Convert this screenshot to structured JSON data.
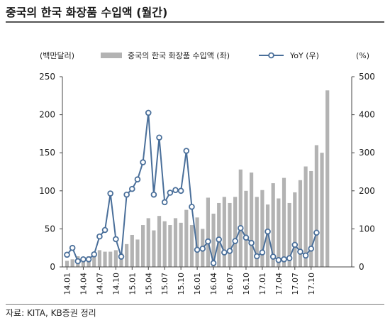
{
  "title": "중국의 한국 화장품 수입액 (월간)",
  "source": "자료: KITA, KB증권 정리",
  "chart_data": {
    "type": "bar+line",
    "y_left_unit": "(백만달러)",
    "y_right_unit": "(%)",
    "y_left_lim": [
      0,
      250
    ],
    "y_right_lim": [
      0,
      500
    ],
    "y_left_ticks": [
      "0",
      "50",
      "100",
      "150",
      "200",
      "250"
    ],
    "y_right_ticks": [
      "0",
      "100",
      "200",
      "300",
      "400",
      "500"
    ],
    "x_tick_labels": [
      "14.01",
      "14.04",
      "14.07",
      "14.10",
      "15.01",
      "15.04",
      "15.07",
      "15.10",
      "16.01",
      "16.04",
      "16.07",
      "16.10",
      "17.01",
      "17.04",
      "17.07",
      "17.10"
    ],
    "legend_position": "top",
    "series": [
      {
        "name": "중국의 한국 화장품 수입액 (좌)",
        "kind": "bar",
        "axis": "left",
        "color": "#b3b3b3",
        "values": [
          8,
          10,
          14,
          12,
          14,
          18,
          22,
          20,
          20,
          22,
          18,
          30,
          42,
          36,
          55,
          64,
          48,
          67,
          60,
          55,
          64,
          58,
          75,
          55,
          65,
          50,
          91,
          70,
          84,
          92,
          84,
          92,
          128,
          100,
          124,
          92,
          101,
          82,
          110,
          90,
          117,
          84,
          98,
          114,
          132,
          126,
          160,
          150,
          232
        ]
      },
      {
        "name": "YoY (우)",
        "kind": "line",
        "axis": "right",
        "color": "#4a6f9a",
        "values": [
          32,
          50,
          15,
          20,
          20,
          33,
          80,
          97,
          193,
          73,
          27,
          190,
          205,
          230,
          275,
          405,
          190,
          340,
          170,
          195,
          202,
          200,
          305,
          158,
          45,
          48,
          67,
          10,
          72,
          38,
          42,
          68,
          102,
          77,
          63,
          28,
          38,
          93,
          27,
          18,
          20,
          23,
          58,
          40,
          30,
          48,
          90
        ]
      }
    ]
  }
}
